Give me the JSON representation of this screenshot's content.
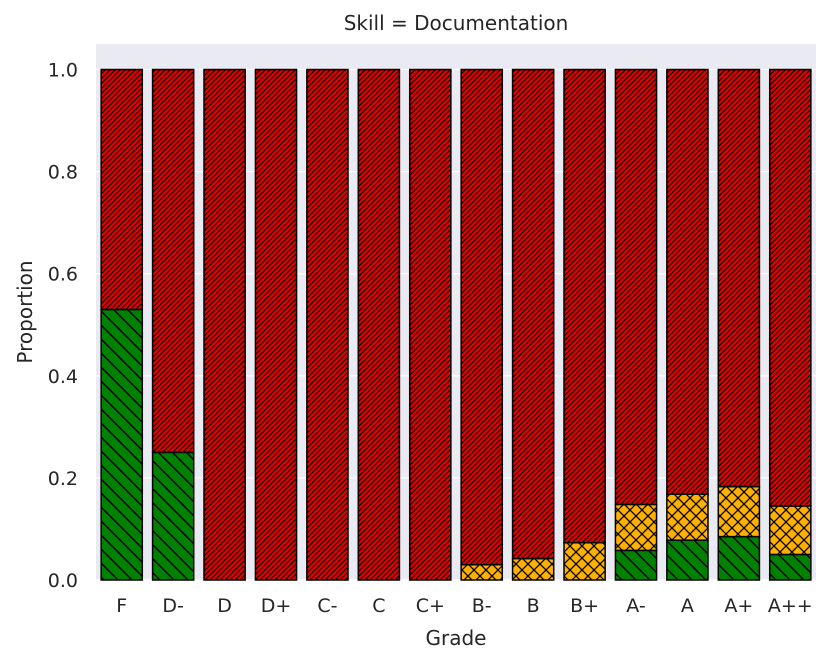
{
  "chart_data": {
    "type": "bar",
    "stacked": true,
    "normalized": true,
    "title": "Skill = Documentation",
    "xlabel": "Grade",
    "ylabel": "Proportion",
    "ylim": [
      0,
      1.05
    ],
    "yticks": [
      0.0,
      0.2,
      0.4,
      0.6,
      0.8,
      1.0
    ],
    "ytick_labels": [
      "0.0",
      "0.2",
      "0.4",
      "0.6",
      "0.8",
      "1.0"
    ],
    "grid": true,
    "legend": "none",
    "categories": [
      "F",
      "D-",
      "D",
      "D+",
      "C-",
      "C",
      "C+",
      "B-",
      "B",
      "B+",
      "A-",
      "A",
      "A+",
      "A++"
    ],
    "series": [
      {
        "color": "#008000",
        "hatch": "backslash",
        "values": [
          0.53,
          0.25,
          0,
          0,
          0,
          0,
          0,
          0,
          0,
          0,
          0.058,
          0.078,
          0.085,
          0.05
        ]
      },
      {
        "color": "#FFB000",
        "hatch": "cross",
        "values": [
          0,
          0,
          0,
          0,
          0,
          0,
          0,
          0.03,
          0.042,
          0.073,
          0.09,
          0.09,
          0.098,
          0.095
        ]
      },
      {
        "color": "#E00000",
        "hatch": "dense-slash",
        "values": [
          0.47,
          0.75,
          1.0,
          1.0,
          1.0,
          1.0,
          1.0,
          0.97,
          0.958,
          0.927,
          0.852,
          0.832,
          0.817,
          0.855
        ]
      }
    ]
  }
}
